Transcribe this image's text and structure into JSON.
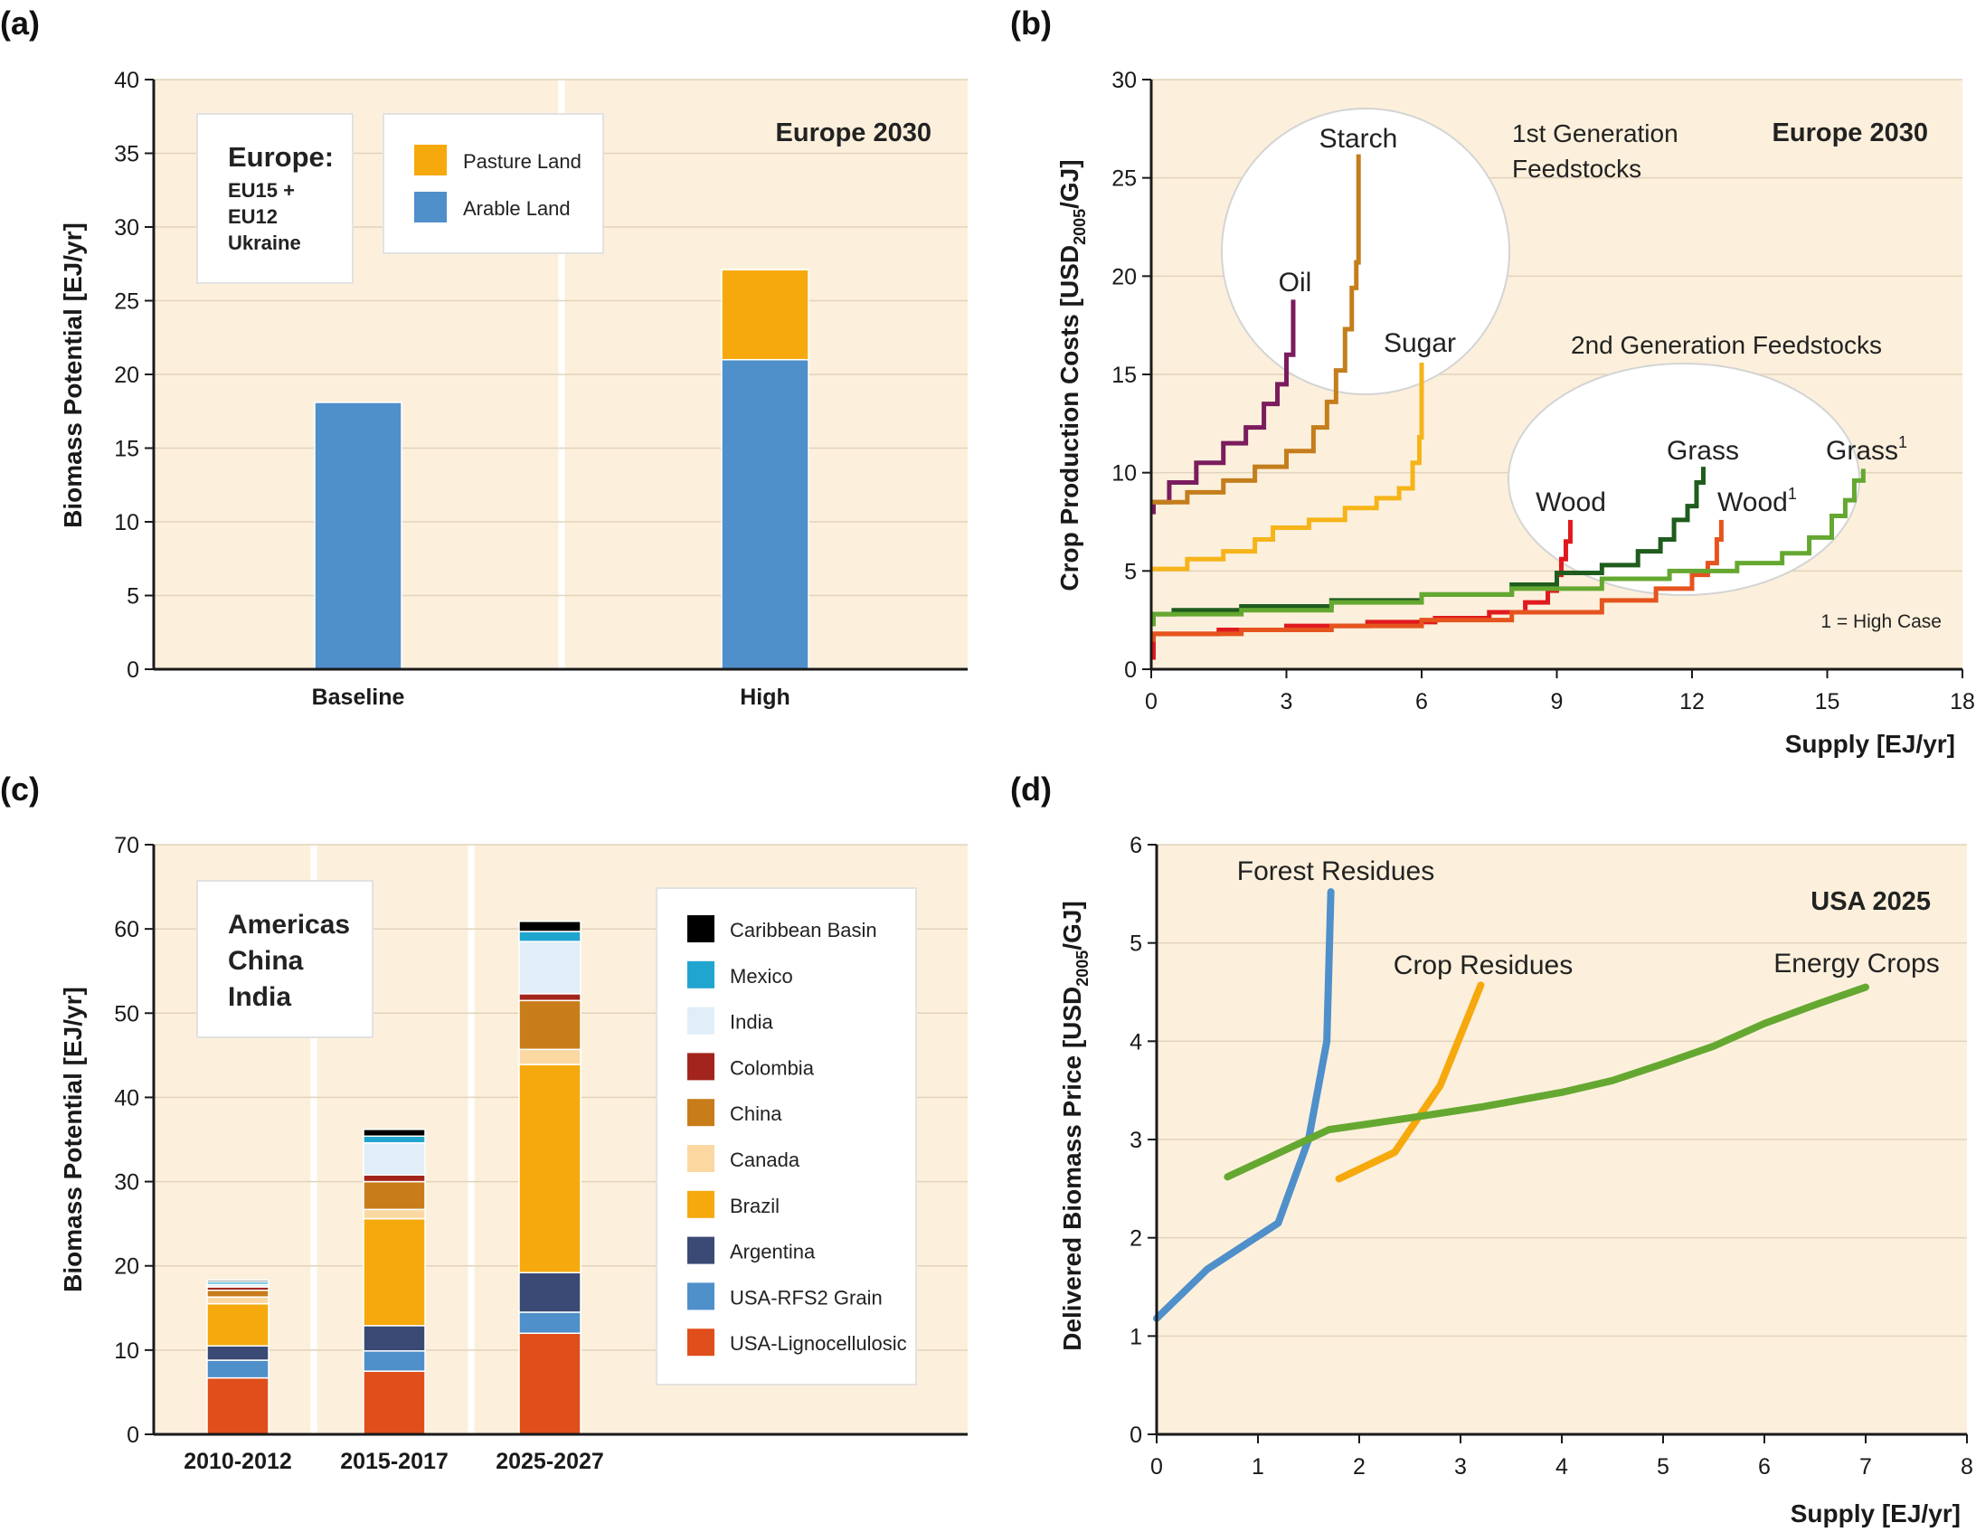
{
  "panels": {
    "a": {
      "label": "(a)",
      "region_title": "Europe 2030",
      "region_box": [
        "Europe:",
        "EU15 +",
        "EU12",
        "Ukraine"
      ],
      "chart_data": {
        "type": "bar",
        "stacked": true,
        "categories": [
          "Baseline",
          "High"
        ],
        "series": [
          {
            "name": "Arable Land",
            "color": "#4f8fca",
            "values": [
              18.1,
              21.0
            ]
          },
          {
            "name": "Pasture Land",
            "color": "#f6a90d",
            "values": [
              0,
              6.1
            ]
          }
        ],
        "legend_order": [
          "Pasture Land",
          "Arable Land"
        ],
        "ylabel": "Biomass Potential  [EJ/yr]",
        "ylim": [
          0,
          40
        ],
        "yticks": [
          0,
          5,
          10,
          15,
          20,
          25,
          30,
          35,
          40
        ]
      }
    },
    "b": {
      "label": "(b)",
      "region_title": "Europe 2030",
      "group_labels": {
        "first": "1st Generation Feedstocks",
        "second": "2nd Generation Feedstocks"
      },
      "note": "1 = High Case",
      "chart_data": {
        "type": "line",
        "step": true,
        "xlabel": "Supply [EJ/yr]",
        "ylabel": "Crop Production Costs  [USD2005/GJ]",
        "xlim": [
          0,
          18
        ],
        "ylim": [
          0,
          30
        ],
        "xticks": [
          0,
          3,
          6,
          9,
          12,
          15,
          18
        ],
        "yticks": [
          0,
          5,
          10,
          15,
          20,
          25,
          30
        ],
        "series": [
          {
            "name": "Oil",
            "color": "#7b1c5e",
            "points": [
              [
                0,
                8
              ],
              [
                0.05,
                8.5
              ],
              [
                0.4,
                9.5
              ],
              [
                1.0,
                10.5
              ],
              [
                1.6,
                11.5
              ],
              [
                2.1,
                12.3
              ],
              [
                2.5,
                13.5
              ],
              [
                2.8,
                14.5
              ],
              [
                3.0,
                16
              ],
              [
                3.15,
                18.8
              ]
            ]
          },
          {
            "name": "Starch",
            "color": "#c47e1c",
            "points": [
              [
                0,
                8.5
              ],
              [
                0.8,
                9
              ],
              [
                1.6,
                9.6
              ],
              [
                2.3,
                10.3
              ],
              [
                3.0,
                11.1
              ],
              [
                3.6,
                12.3
              ],
              [
                3.9,
                13.6
              ],
              [
                4.1,
                15.2
              ],
              [
                4.3,
                17.3
              ],
              [
                4.45,
                19.4
              ],
              [
                4.55,
                20.7
              ],
              [
                4.6,
                26.2
              ]
            ]
          },
          {
            "name": "Sugar",
            "color": "#f6b41a",
            "points": [
              [
                0,
                5.1
              ],
              [
                0.8,
                5.6
              ],
              [
                1.6,
                6.0
              ],
              [
                2.3,
                6.6
              ],
              [
                2.7,
                7.2
              ],
              [
                3.5,
                7.6
              ],
              [
                4.3,
                8.2
              ],
              [
                5.0,
                8.7
              ],
              [
                5.5,
                9.2
              ],
              [
                5.8,
                10.5
              ],
              [
                5.95,
                11.8
              ],
              [
                6.0,
                15.6
              ]
            ]
          },
          {
            "name": "Wood",
            "color": "#e0191e",
            "points": [
              [
                0,
                0.6
              ],
              [
                0.05,
                1.8
              ],
              [
                1.5,
                2.0
              ],
              [
                3.0,
                2.2
              ],
              [
                4.8,
                2.4
              ],
              [
                6.3,
                2.6
              ],
              [
                7.5,
                2.9
              ],
              [
                8.3,
                3.4
              ],
              [
                8.8,
                4.0
              ],
              [
                9.0,
                4.8
              ],
              [
                9.1,
                5.6
              ],
              [
                9.2,
                6.5
              ],
              [
                9.3,
                7.6
              ]
            ]
          },
          {
            "name": "Wood1",
            "color": "#e5541e",
            "points": [
              [
                0,
                1.5
              ],
              [
                0.05,
                1.8
              ],
              [
                2,
                2.0
              ],
              [
                4,
                2.2
              ],
              [
                6,
                2.5
              ],
              [
                8,
                2.9
              ],
              [
                10,
                3.5
              ],
              [
                11.2,
                4.1
              ],
              [
                12,
                4.8
              ],
              [
                12.35,
                5.4
              ],
              [
                12.55,
                6.6
              ],
              [
                12.65,
                7.6
              ]
            ]
          },
          {
            "name": "Grass",
            "color": "#1f5c1e",
            "points": [
              [
                0,
                2.4
              ],
              [
                0.05,
                2.8
              ],
              [
                0.5,
                3.0
              ],
              [
                2,
                3.2
              ],
              [
                4,
                3.5
              ],
              [
                6,
                3.8
              ],
              [
                8,
                4.3
              ],
              [
                9,
                4.9
              ],
              [
                10,
                5.3
              ],
              [
                10.8,
                6.0
              ],
              [
                11.3,
                6.6
              ],
              [
                11.6,
                7.6
              ],
              [
                11.9,
                8.3
              ],
              [
                12.1,
                9.5
              ],
              [
                12.25,
                10.3
              ]
            ]
          },
          {
            "name": "Grass1",
            "color": "#65a831",
            "points": [
              [
                0,
                2.3
              ],
              [
                0.05,
                2.8
              ],
              [
                2,
                3.0
              ],
              [
                4,
                3.4
              ],
              [
                6,
                3.8
              ],
              [
                8,
                4.1
              ],
              [
                10,
                4.6
              ],
              [
                11.5,
                5.0
              ],
              [
                13,
                5.4
              ],
              [
                14,
                5.9
              ],
              [
                14.6,
                6.7
              ],
              [
                15.1,
                7.8
              ],
              [
                15.4,
                8.6
              ],
              [
                15.6,
                9.6
              ],
              [
                15.8,
                10.2
              ]
            ]
          }
        ],
        "labels": {
          "Oil": "Oil",
          "Starch": "Starch",
          "Sugar": "Sugar",
          "Wood": "Wood",
          "Grass": "Grass",
          "Wood1": "Wood",
          "Grass1": "Grass",
          "superscript": "1"
        }
      }
    },
    "c": {
      "label": "(c)",
      "region_box": [
        "Americas",
        "China",
        "India"
      ],
      "chart_data": {
        "type": "bar",
        "stacked": true,
        "categories": [
          "2010-2012",
          "2015-2017",
          "2025-2027"
        ],
        "series": [
          {
            "name": "USA-Lignocellulosic",
            "color": "#e04e1b",
            "values": [
              6.7,
              7.5,
              12.0
            ]
          },
          {
            "name": "USA-RFS2 Grain",
            "color": "#4f8fca",
            "values": [
              2.1,
              2.4,
              2.5
            ]
          },
          {
            "name": "Argentina",
            "color": "#3a4a74",
            "values": [
              1.7,
              3.0,
              4.7
            ]
          },
          {
            "name": "Brazil",
            "color": "#f6a90d",
            "values": [
              5.0,
              12.7,
              24.7
            ]
          },
          {
            "name": "Canada",
            "color": "#fbd8a1",
            "values": [
              0.8,
              1.1,
              1.8
            ]
          },
          {
            "name": "China",
            "color": "#c87d1a",
            "values": [
              0.8,
              3.3,
              5.8
            ]
          },
          {
            "name": "Colombia",
            "color": "#a3241c",
            "values": [
              0.4,
              0.8,
              0.8
            ]
          },
          {
            "name": "India",
            "color": "#e1eef7",
            "values": [
              0.3,
              3.8,
              6.2
            ]
          },
          {
            "name": "Mexico",
            "color": "#20a5cf",
            "values": [
              0.3,
              0.8,
              1.2
            ]
          },
          {
            "name": "Caribbean Basin",
            "color": "#000000",
            "values": [
              0.2,
              0.8,
              1.2
            ]
          }
        ],
        "legend_order": [
          "Caribbean Basin",
          "Mexico",
          "India",
          "Colombia",
          "China",
          "Canada",
          "Brazil",
          "Argentina",
          "USA-RFS2 Grain",
          "USA-Lignocellulosic"
        ],
        "ylabel": "Biomass Potential  [EJ/yr]",
        "ylim": [
          0,
          70
        ],
        "yticks": [
          0,
          10,
          20,
          30,
          40,
          50,
          60,
          70
        ]
      }
    },
    "d": {
      "label": "(d)",
      "region_title": "USA 2025",
      "chart_data": {
        "type": "line",
        "xlabel": "Supply [EJ/yr]",
        "ylabel": "Delivered Biomass Price [USD2005/GJ]",
        "xlim": [
          0,
          8
        ],
        "ylim": [
          0,
          6
        ],
        "xticks": [
          0,
          1,
          2,
          3,
          4,
          5,
          6,
          7,
          8
        ],
        "yticks": [
          0,
          1,
          2,
          3,
          4,
          5,
          6
        ],
        "series": [
          {
            "name": "Forest Residues",
            "color": "#4f8fca",
            "points": [
              [
                0,
                1.18
              ],
              [
                0.5,
                1.68
              ],
              [
                1.2,
                2.15
              ],
              [
                1.5,
                3.0
              ],
              [
                1.68,
                4.0
              ],
              [
                1.72,
                5.52
              ]
            ]
          },
          {
            "name": "Crop Residues",
            "color": "#f6a90d",
            "points": [
              [
                1.8,
                2.6
              ],
              [
                2.35,
                2.87
              ],
              [
                2.8,
                3.55
              ],
              [
                3.2,
                4.57
              ]
            ]
          },
          {
            "name": "Energy Crops",
            "color": "#65a831",
            "points": [
              [
                0.7,
                2.62
              ],
              [
                1.7,
                3.1
              ],
              [
                2.5,
                3.22
              ],
              [
                3.2,
                3.33
              ],
              [
                4.0,
                3.48
              ],
              [
                4.5,
                3.6
              ],
              [
                5.0,
                3.77
              ],
              [
                5.5,
                3.95
              ],
              [
                6.0,
                4.18
              ],
              [
                6.5,
                4.37
              ],
              [
                7.0,
                4.55
              ]
            ]
          }
        ]
      }
    }
  }
}
